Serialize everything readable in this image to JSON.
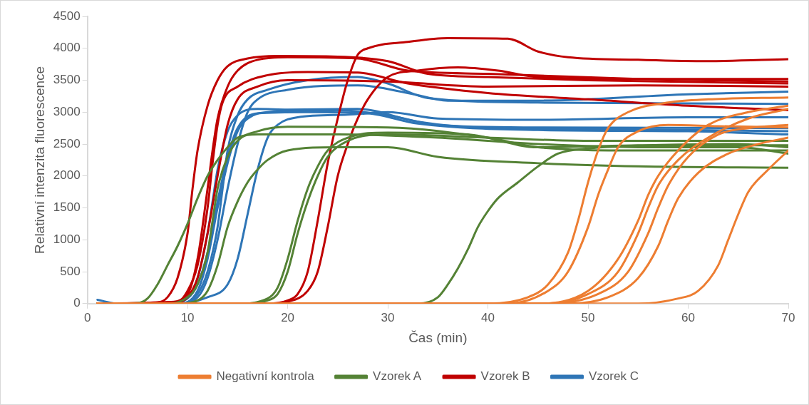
{
  "chart_data": {
    "type": "line",
    "xlabel": "Čas (min)",
    "ylabel": "Relativní intenzita fluorescence",
    "xlim": [
      0,
      70
    ],
    "xticks": [
      0,
      10,
      20,
      30,
      40,
      50,
      60,
      70
    ],
    "ylim": [
      0,
      4500
    ],
    "yticks": [
      0,
      500,
      1000,
      1500,
      2000,
      2500,
      3000,
      3500,
      4000,
      4500
    ],
    "grid": false,
    "legend": "bottom",
    "series": [
      {
        "name": "Negativní kontrola",
        "color": "#ed7d31",
        "x": [
          1,
          40,
          44,
          46,
          48,
          49,
          50,
          51,
          52,
          54,
          58,
          62,
          70
        ],
        "values": [
          0,
          0,
          100,
          300,
          800,
          1300,
          1900,
          2400,
          2750,
          3000,
          3150,
          3200,
          3230
        ]
      },
      {
        "color": "#ed7d31",
        "x": [
          1,
          42,
          46,
          48,
          50,
          51,
          52,
          53,
          55,
          58,
          63,
          70
        ],
        "values": [
          0,
          0,
          200,
          500,
          1200,
          1700,
          2100,
          2450,
          2700,
          2800,
          2780,
          2760
        ]
      },
      {
        "color": "#ed7d31",
        "x": [
          1,
          45,
          50,
          53,
          55,
          56,
          57,
          59,
          62,
          66,
          70
        ],
        "values": [
          0,
          0,
          200,
          700,
          1300,
          1700,
          2000,
          2400,
          2800,
          3000,
          3100
        ]
      },
      {
        "color": "#ed7d31",
        "x": [
          1,
          46,
          50,
          53,
          55,
          56,
          57,
          59,
          62,
          66,
          70
        ],
        "values": [
          0,
          0,
          150,
          500,
          1100,
          1500,
          1850,
          2250,
          2600,
          2900,
          3050
        ]
      },
      {
        "color": "#ed7d31",
        "x": [
          1,
          46,
          51,
          54,
          56,
          57,
          58,
          60,
          63,
          66,
          70
        ],
        "values": [
          0,
          0,
          150,
          500,
          1100,
          1500,
          1850,
          2300,
          2650,
          2750,
          2800
        ]
      },
      {
        "color": "#ed7d31",
        "x": [
          1,
          48,
          52,
          55,
          57,
          58,
          59,
          61,
          64,
          67,
          70
        ],
        "values": [
          0,
          0,
          100,
          400,
          900,
          1300,
          1650,
          2050,
          2350,
          2500,
          2600
        ]
      },
      {
        "color": "#ed7d31",
        "x": [
          1,
          55,
          59,
          61,
          63,
          64,
          65,
          66,
          68,
          70
        ],
        "values": [
          0,
          0,
          80,
          200,
          600,
          1000,
          1400,
          1750,
          2100,
          2400
        ]
      },
      {
        "name": "Vzorek A",
        "color": "#548235",
        "x": [
          1,
          5,
          6,
          7,
          8,
          9,
          10,
          11,
          12,
          13,
          14,
          15,
          17,
          25,
          35,
          45,
          55,
          65,
          70
        ],
        "values": [
          0,
          10,
          80,
          300,
          600,
          900,
          1250,
          1650,
          2000,
          2250,
          2450,
          2600,
          2650,
          2650,
          2600,
          2500,
          2450,
          2450,
          2350
        ]
      },
      {
        "color": "#548235",
        "x": [
          1,
          8,
          10,
          11,
          12,
          12.5,
          13,
          14,
          15,
          17,
          20,
          30,
          40,
          45,
          55,
          70
        ],
        "values": [
          0,
          0,
          100,
          300,
          800,
          1300,
          1800,
          2300,
          2550,
          2700,
          2770,
          2760,
          2600,
          2450,
          2400,
          2400
        ]
      },
      {
        "color": "#548235",
        "x": [
          1,
          9,
          11,
          12,
          13,
          14,
          15,
          16,
          17,
          18,
          20,
          25,
          30,
          35,
          45,
          55,
          70
        ],
        "values": [
          0,
          0,
          50,
          200,
          600,
          1200,
          1600,
          1900,
          2100,
          2250,
          2400,
          2450,
          2450,
          2300,
          2200,
          2150,
          2130
        ]
      },
      {
        "color": "#548235",
        "x": [
          1,
          15,
          18,
          19,
          20,
          21,
          22,
          23,
          24,
          26,
          30,
          40,
          50,
          60,
          70
        ],
        "values": [
          0,
          0,
          50,
          150,
          500,
          1100,
          1600,
          2000,
          2300,
          2550,
          2650,
          2600,
          2550,
          2550,
          2550
        ]
      },
      {
        "color": "#548235",
        "x": [
          1,
          15,
          18,
          19,
          20,
          21,
          22,
          23,
          24,
          26,
          30,
          38,
          45,
          55,
          65,
          70
        ],
        "values": [
          0,
          0,
          80,
          250,
          700,
          1300,
          1800,
          2150,
          2400,
          2600,
          2680,
          2650,
          2450,
          2480,
          2500,
          2450
        ]
      },
      {
        "color": "#548235",
        "x": [
          1,
          33,
          35,
          36,
          37,
          38,
          39,
          40,
          41,
          43,
          45,
          47,
          50,
          60,
          70
        ],
        "values": [
          0,
          0,
          100,
          300,
          550,
          850,
          1200,
          1450,
          1650,
          1900,
          2150,
          2350,
          2430,
          2480,
          2480
        ]
      },
      {
        "name": "Vzorek B",
        "color": "#c00000",
        "x": [
          1,
          7,
          8,
          9,
          10,
          10.5,
          11,
          12,
          13,
          14,
          16,
          19,
          25,
          30,
          34,
          40,
          50,
          70
        ],
        "values": [
          0,
          20,
          100,
          400,
          1100,
          1800,
          2400,
          3100,
          3500,
          3720,
          3840,
          3880,
          3870,
          3800,
          3600,
          3550,
          3500,
          3450
        ]
      },
      {
        "color": "#c00000",
        "x": [
          1,
          8,
          10,
          11,
          12,
          12.5,
          13,
          14,
          15,
          17,
          20,
          27,
          32,
          40,
          55,
          70
        ],
        "values": [
          0,
          20,
          150,
          700,
          1800,
          2400,
          2900,
          3400,
          3650,
          3820,
          3860,
          3840,
          3650,
          3600,
          3520,
          3480
        ]
      },
      {
        "color": "#c00000",
        "x": [
          1,
          9,
          10,
          11,
          12,
          12.5,
          13,
          13.5,
          15,
          18,
          22,
          27,
          32,
          40,
          50,
          60,
          70
        ],
        "values": [
          0,
          30,
          200,
          600,
          1500,
          2200,
          2800,
          3150,
          3400,
          3580,
          3630,
          3620,
          3450,
          3300,
          3200,
          3100,
          3030
        ]
      },
      {
        "color": "#c00000",
        "x": [
          1,
          9,
          10,
          11,
          12,
          13,
          14,
          15,
          17,
          20,
          30,
          40,
          55,
          70
        ],
        "values": [
          0,
          20,
          100,
          400,
          1100,
          2000,
          2800,
          3200,
          3400,
          3500,
          3480,
          3400,
          3420,
          3400
        ]
      },
      {
        "color": "#c00000",
        "x": [
          1,
          18,
          20,
          21,
          22,
          23,
          24,
          25,
          26,
          27,
          28,
          32,
          36,
          42,
          45,
          48,
          55,
          62,
          70
        ],
        "values": [
          0,
          0,
          50,
          150,
          500,
          1300,
          2200,
          2900,
          3500,
          3900,
          4000,
          4100,
          4160,
          4150,
          3950,
          3860,
          3820,
          3800,
          3830
        ]
      },
      {
        "color": "#c00000",
        "x": [
          1,
          18,
          20,
          22,
          23,
          24,
          25,
          26,
          27,
          28,
          30,
          33,
          37,
          41,
          45,
          55,
          70
        ],
        "values": [
          0,
          0,
          30,
          200,
          500,
          1200,
          2000,
          2500,
          2900,
          3200,
          3550,
          3650,
          3700,
          3650,
          3550,
          3520,
          3520
        ]
      },
      {
        "name": "Vzorek C",
        "color": "#2e75b6",
        "x": [
          1,
          3,
          8,
          10,
          11,
          12,
          12.5,
          13,
          14,
          15,
          17,
          20,
          27,
          33,
          40,
          55,
          70
        ],
        "values": [
          60,
          0,
          0,
          100,
          400,
          1100,
          1600,
          2100,
          2700,
          2950,
          3050,
          3040,
          3050,
          2850,
          2750,
          2730,
          2700
        ]
      },
      {
        "color": "#2e75b6",
        "x": [
          1,
          8,
          10,
          11,
          12,
          13,
          14,
          15,
          17,
          22,
          28,
          33,
          45,
          60,
          70
        ],
        "values": [
          0,
          0,
          80,
          300,
          800,
          1600,
          2300,
          2750,
          2980,
          3000,
          2980,
          2820,
          2720,
          2700,
          2650
        ]
      },
      {
        "color": "#2e75b6",
        "x": [
          1,
          9,
          11,
          12,
          13,
          13.5,
          14,
          15,
          16,
          18,
          22,
          27,
          30,
          34,
          45,
          70
        ],
        "values": [
          0,
          0,
          150,
          500,
          1200,
          1800,
          2400,
          2950,
          3200,
          3350,
          3500,
          3550,
          3450,
          3220,
          3150,
          3130
        ]
      },
      {
        "color": "#2e75b6",
        "x": [
          1,
          9,
          11,
          12,
          13,
          14,
          15,
          16,
          17,
          20,
          27,
          32,
          36,
          45,
          60,
          70
        ],
        "values": [
          0,
          0,
          100,
          400,
          1000,
          1800,
          2500,
          3000,
          3200,
          3350,
          3420,
          3300,
          3180,
          3180,
          3280,
          3320
        ]
      },
      {
        "color": "#2e75b6",
        "x": [
          1,
          9,
          12,
          14,
          15,
          16,
          17,
          18,
          19,
          21,
          26,
          30,
          35,
          45,
          60,
          70
        ],
        "values": [
          0,
          0,
          100,
          300,
          700,
          1400,
          2100,
          2600,
          2800,
          2920,
          2960,
          3000,
          2900,
          2880,
          2920,
          2920
        ]
      },
      {
        "color": "#2e75b6",
        "x": [
          1,
          9,
          11,
          12,
          13,
          14,
          15,
          16,
          18,
          25,
          30,
          35,
          45,
          70
        ],
        "values": [
          0,
          0,
          200,
          700,
          1500,
          2200,
          2700,
          2900,
          3000,
          3030,
          2950,
          2800,
          2760,
          2750
        ]
      }
    ]
  }
}
